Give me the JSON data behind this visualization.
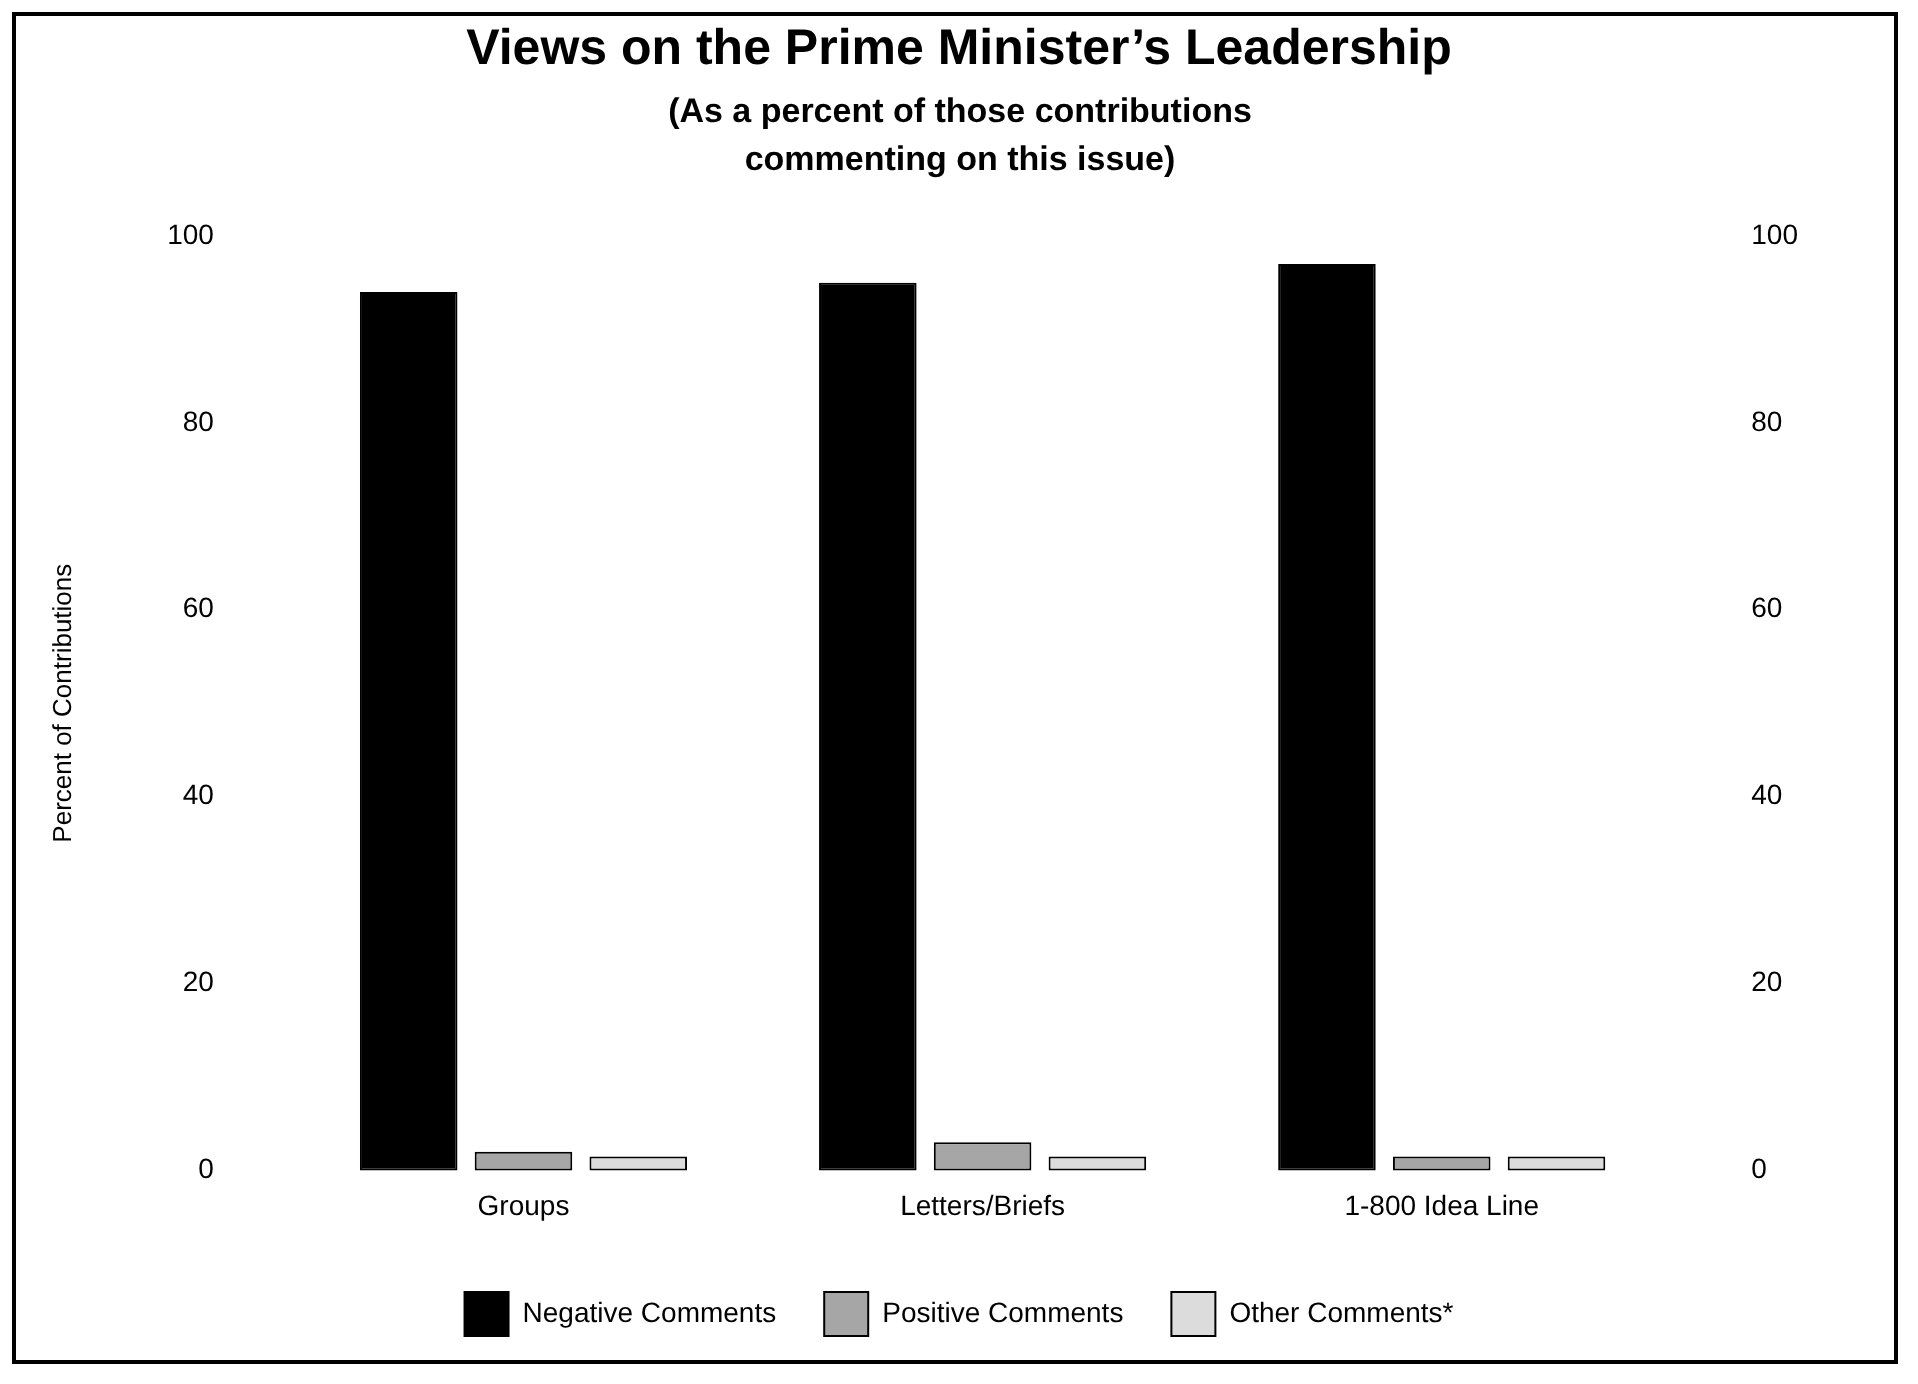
{
  "chart_data": {
    "type": "bar",
    "title": "Views on the Prime Minister’s Leadership",
    "subtitle": "(As a percent of those contributions commenting on this issue)",
    "ylabel": "Percent of Contributions",
    "categories": [
      "Groups",
      "Letters/Briefs",
      "1-800 Idea Line"
    ],
    "series": [
      {
        "name": "Negative Comments",
        "color": "#000000",
        "values": [
          94,
          95,
          97
        ]
      },
      {
        "name": "Positive Comments",
        "color": "#a6a6a6",
        "values": [
          2,
          3,
          1.5
        ]
      },
      {
        "name": "Other Comments*",
        "color": "#dcdcdc",
        "values": [
          1.5,
          1.5,
          1.5
        ]
      }
    ],
    "ylim": [
      0,
      100
    ],
    "yticks": [
      0,
      20,
      40,
      60,
      80,
      100
    ],
    "y2lim": [
      0,
      100
    ],
    "y2ticks": [
      0,
      20,
      40,
      60,
      80,
      100
    ],
    "grid": false,
    "legend": "bottom"
  }
}
